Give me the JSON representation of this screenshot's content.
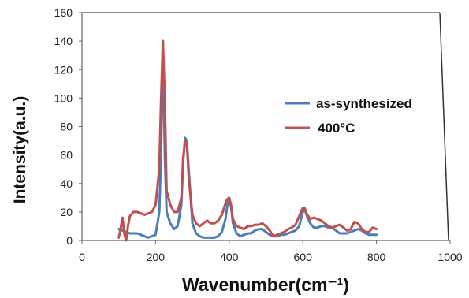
{
  "chart_data": {
    "type": "line",
    "title": "",
    "xlabel": "Wavenumber(cm⁻¹)",
    "ylabel": "Intensity(a.u.)",
    "xlim": [
      0,
      1000
    ],
    "ylim": [
      0,
      160
    ],
    "x_ticks": [
      "0",
      "200",
      "400",
      "600",
      "800",
      "1000"
    ],
    "y_ticks": [
      "0",
      "20",
      "40",
      "60",
      "80",
      "100",
      "120",
      "140",
      "160"
    ],
    "grid": false,
    "legend_position": "right",
    "series": [
      {
        "name": "as-synthesized",
        "color": "#4a7ebb",
        "x": [
          100,
          110,
          120,
          130,
          140,
          150,
          160,
          170,
          180,
          190,
          200,
          210,
          215,
          220,
          225,
          230,
          240,
          250,
          260,
          270,
          275,
          280,
          285,
          290,
          300,
          310,
          320,
          330,
          340,
          350,
          360,
          370,
          380,
          390,
          395,
          400,
          405,
          410,
          420,
          430,
          440,
          450,
          460,
          470,
          480,
          490,
          500,
          510,
          520,
          530,
          540,
          550,
          560,
          570,
          580,
          590,
          600,
          605,
          610,
          620,
          630,
          640,
          650,
          660,
          670,
          680,
          690,
          700,
          710,
          720,
          730,
          740,
          750,
          760,
          770,
          780,
          790,
          800
        ],
        "values": [
          8,
          7,
          6,
          5,
          5,
          5,
          4,
          3,
          2,
          3,
          4,
          20,
          60,
          140,
          60,
          20,
          12,
          8,
          10,
          25,
          55,
          72,
          70,
          50,
          12,
          5,
          3,
          2,
          2,
          2,
          2,
          3,
          6,
          15,
          25,
          28,
          24,
          12,
          5,
          3,
          4,
          5,
          5,
          7,
          8,
          8,
          6,
          4,
          3,
          3,
          4,
          4,
          5,
          6,
          7,
          10,
          20,
          22,
          18,
          12,
          9,
          9,
          10,
          10,
          9,
          9,
          7,
          5,
          5,
          5,
          6,
          7,
          8,
          7,
          5,
          4,
          4,
          4
        ]
      },
      {
        "name": "400°C",
        "color": "#c0504d",
        "x": [
          100,
          105,
          110,
          115,
          120,
          125,
          130,
          140,
          150,
          160,
          170,
          180,
          190,
          200,
          210,
          215,
          220,
          225,
          230,
          240,
          250,
          260,
          270,
          275,
          280,
          285,
          290,
          300,
          310,
          320,
          330,
          340,
          350,
          360,
          370,
          380,
          390,
          395,
          400,
          405,
          410,
          420,
          430,
          440,
          450,
          460,
          470,
          480,
          490,
          500,
          510,
          520,
          530,
          540,
          550,
          560,
          570,
          580,
          590,
          600,
          605,
          610,
          620,
          630,
          640,
          650,
          660,
          670,
          680,
          690,
          700,
          710,
          720,
          730,
          740,
          750,
          760,
          770,
          780,
          790,
          800
        ],
        "values": [
          2,
          8,
          16,
          5,
          0,
          10,
          17,
          20,
          20,
          19,
          18,
          19,
          20,
          25,
          50,
          100,
          140,
          100,
          35,
          25,
          20,
          20,
          30,
          58,
          70,
          68,
          45,
          18,
          12,
          10,
          12,
          14,
          12,
          12,
          14,
          18,
          26,
          29,
          30,
          25,
          15,
          10,
          9,
          8,
          10,
          10,
          11,
          11,
          12,
          10,
          7,
          3,
          4,
          5,
          6,
          8,
          9,
          11,
          17,
          23,
          23,
          19,
          15,
          16,
          15,
          14,
          12,
          10,
          9,
          10,
          11,
          9,
          7,
          8,
          13,
          12,
          8,
          6,
          6,
          9,
          8
        ]
      }
    ]
  }
}
